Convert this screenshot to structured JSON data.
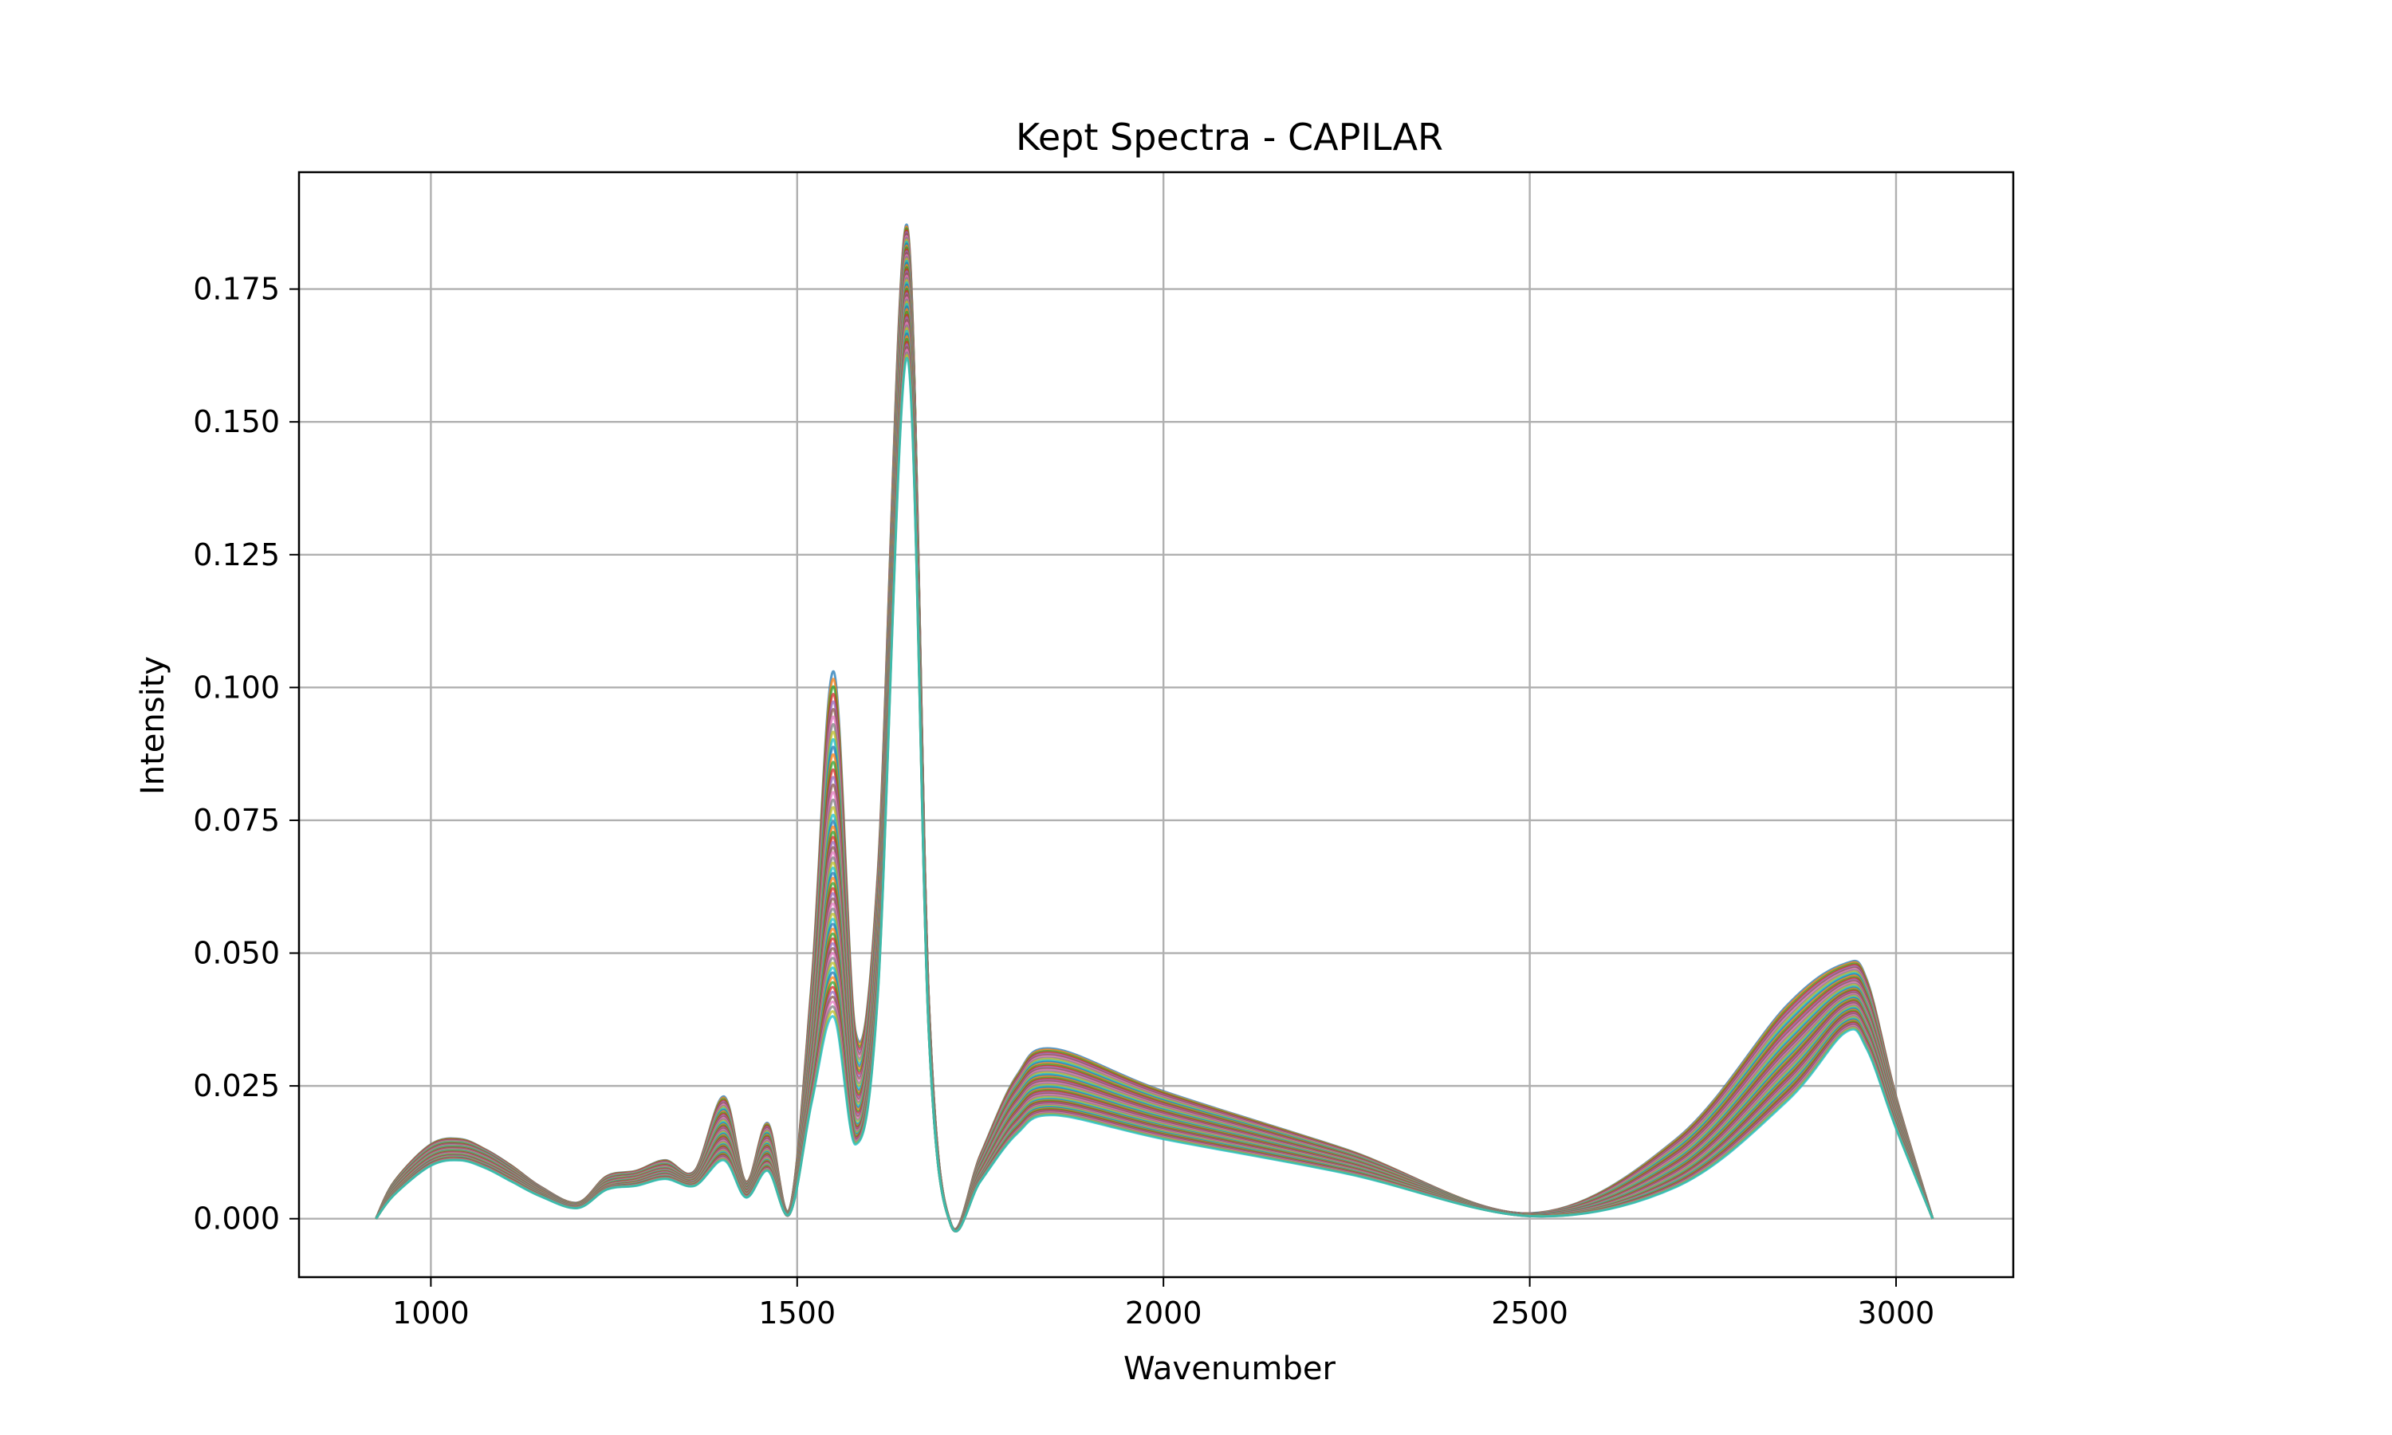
{
  "chart_data": {
    "type": "line",
    "title": "Kept Spectra - CAPILAR",
    "xlabel": "Wavenumber",
    "ylabel": "Intensity",
    "xlim": [
      820,
      3160
    ],
    "ylim": [
      -0.011,
      0.197
    ],
    "xticks": [
      1000,
      1500,
      2000,
      2500,
      3000
    ],
    "yticks": [
      0.0,
      0.025,
      0.05,
      0.075,
      0.1,
      0.125,
      0.15,
      0.175
    ],
    "xtick_labels": [
      "1000",
      "1500",
      "2000",
      "2500",
      "3000"
    ],
    "ytick_labels": [
      "0.000",
      "0.025",
      "0.050",
      "0.075",
      "0.100",
      "0.125",
      "0.150",
      "0.175"
    ],
    "grid": true,
    "legend": false,
    "series_colors": [
      "#1f77b4",
      "#ff7f0e",
      "#2ca02c",
      "#d62728",
      "#9467bd",
      "#8c564b",
      "#e377c2",
      "#7f7f7f",
      "#bcbd22",
      "#17becf"
    ],
    "x": [
      925,
      950,
      1000,
      1040,
      1075,
      1110,
      1150,
      1200,
      1240,
      1280,
      1320,
      1360,
      1400,
      1430,
      1460,
      1490,
      1520,
      1550,
      1580,
      1610,
      1650,
      1680,
      1710,
      1750,
      1800,
      1850,
      2000,
      2250,
      2500,
      2700,
      2850,
      2930,
      2960,
      3000,
      3050
    ],
    "series": [
      {
        "values": [
          0.0,
          0.007,
          0.014,
          0.015,
          0.013,
          0.01,
          0.006,
          0.003,
          0.008,
          0.009,
          0.011,
          0.009,
          0.023,
          0.007,
          0.018,
          0.002,
          0.045,
          0.103,
          0.035,
          0.065,
          0.187,
          0.04,
          -0.001,
          0.012,
          0.027,
          0.032,
          0.024,
          0.013,
          0.001,
          0.015,
          0.04,
          0.048,
          0.045,
          0.023,
          0.0
        ]
      },
      {
        "values": [
          0.0,
          0.006,
          0.0125,
          0.0135,
          0.012,
          0.009,
          0.0055,
          0.0028,
          0.007,
          0.008,
          0.0095,
          0.008,
          0.018,
          0.006,
          0.014,
          0.0015,
          0.035,
          0.075,
          0.025,
          0.055,
          0.18,
          0.038,
          -0.001,
          0.01,
          0.023,
          0.027,
          0.0205,
          0.0115,
          0.0008,
          0.011,
          0.033,
          0.043,
          0.04,
          0.021,
          0.0
        ]
      },
      {
        "values": [
          0.0,
          0.005,
          0.011,
          0.012,
          0.0105,
          0.008,
          0.0048,
          0.0025,
          0.006,
          0.007,
          0.0085,
          0.007,
          0.014,
          0.005,
          0.011,
          0.001,
          0.028,
          0.056,
          0.018,
          0.048,
          0.172,
          0.036,
          -0.0012,
          0.008,
          0.019,
          0.0225,
          0.0175,
          0.01,
          0.0006,
          0.008,
          0.027,
          0.039,
          0.036,
          0.019,
          0.0
        ]
      },
      {
        "values": [
          0.0,
          0.0045,
          0.01,
          0.011,
          0.0095,
          0.007,
          0.0042,
          0.002,
          0.0055,
          0.0062,
          0.0075,
          0.0062,
          0.011,
          0.004,
          0.009,
          0.001,
          0.022,
          0.038,
          0.014,
          0.042,
          0.162,
          0.034,
          -0.0012,
          0.007,
          0.016,
          0.0195,
          0.015,
          0.0085,
          0.0005,
          0.006,
          0.022,
          0.035,
          0.032,
          0.017,
          0.0
        ]
      }
    ]
  }
}
